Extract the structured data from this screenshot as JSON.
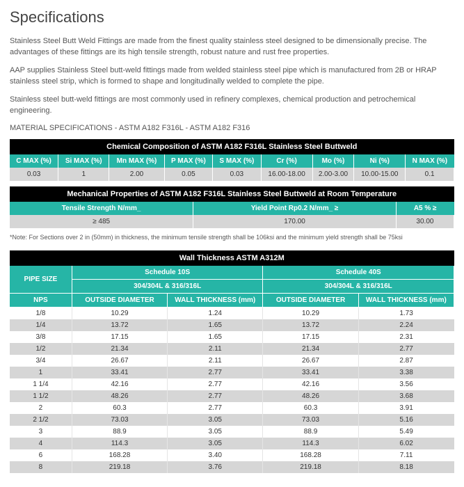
{
  "title": "Specifications",
  "paragraphs": [
    "Stainless Steel Butt Weld Fittings are made from the finest quality stainless steel designed to be dimensionally precise. The advantages of these fittings are its high tensile strength, robust nature and rust free properties.",
    "AAP supplies Stainless Steel butt-weld fittings made from welded stainless steel pipe which is manufactured from 2B or HRAP stainless steel strip, which is formed to shape and longitudinally welded to complete the pipe.",
    "Stainless steel butt-weld fittings are most commonly used in refinery complexes, chemical production and petrochemical engineering."
  ],
  "material_spec_line": "MATERIAL SPECIFICATIONS - ASTM A182 F316L - ASTM A182 F316",
  "chem_table": {
    "title": "Chemical Composition of ASTM A182 F316L Stainless Steel Buttweld",
    "headers": [
      "C MAX (%)",
      "Si MAX (%)",
      "Mn MAX (%)",
      "P MAX (%)",
      "S MAX (%)",
      "Cr (%)",
      "Mo (%)",
      "Ni (%)",
      "N MAX (%)"
    ],
    "values": [
      "0.03",
      "1",
      "2.00",
      "0.05",
      "0.03",
      "16.00-18.00",
      "2.00-3.00",
      "10.00-15.00",
      "0.1"
    ]
  },
  "mech_table": {
    "title": "Mechanical Properties of  ASTM A182 F316L Stainless Steel Buttweld at Room Temperature",
    "headers": [
      "Tensile Strength N/mm_",
      "Yield Point Rp0.2  N/mm_ ≥",
      "A5 % ≥"
    ],
    "values": [
      "≥ 485",
      "170.00",
      "30.00"
    ]
  },
  "note": "*Note: For Sections over 2 in (50mm) in thickness, the minimum tensile strength shall be 106ksi and the minimum yield strength shall be 75ksi",
  "wall_table": {
    "title": "Wall Thickness ASTM A312M",
    "pipe_size_label": "PIPE SIZE",
    "schedule1": "Schedule 10S",
    "schedule2": "Schedule 40S",
    "material_label": "304/304L & 316/316L",
    "nps_label": "NPS",
    "od_label": "OUTSIDE DIAMETER",
    "wt_label_mm": "WALL THICKNESS (mm)",
    "rows": [
      {
        "nps": "1/8",
        "od1": "10.29",
        "wt1": "1.24",
        "od2": "10.29",
        "wt2": "1.73"
      },
      {
        "nps": "1/4",
        "od1": "13.72",
        "wt1": "1.65",
        "od2": "13.72",
        "wt2": "2.24"
      },
      {
        "nps": "3/8",
        "od1": "17.15",
        "wt1": "1.65",
        "od2": "17.15",
        "wt2": "2.31"
      },
      {
        "nps": "1/2",
        "od1": "21.34",
        "wt1": "2.11",
        "od2": "21.34",
        "wt2": "2.77"
      },
      {
        "nps": "3/4",
        "od1": "26.67",
        "wt1": "2.11",
        "od2": "26.67",
        "wt2": "2.87"
      },
      {
        "nps": "1",
        "od1": "33.41",
        "wt1": "2.77",
        "od2": "33.41",
        "wt2": "3.38"
      },
      {
        "nps": "1 1/4",
        "od1": "42.16",
        "wt1": "2.77",
        "od2": "42.16",
        "wt2": "3.56"
      },
      {
        "nps": "1 1/2",
        "od1": "48.26",
        "wt1": "2.77",
        "od2": "48.26",
        "wt2": "3.68"
      },
      {
        "nps": "2",
        "od1": "60.3",
        "wt1": "2.77",
        "od2": "60.3",
        "wt2": "3.91"
      },
      {
        "nps": "2 1/2",
        "od1": "73.03",
        "wt1": "3.05",
        "od2": "73.03",
        "wt2": "5.16"
      },
      {
        "nps": "3",
        "od1": "88.9",
        "wt1": "3.05",
        "od2": "88.9",
        "wt2": "5.49"
      },
      {
        "nps": "4",
        "od1": "114.3",
        "wt1": "3.05",
        "od2": "114.3",
        "wt2": "6.02"
      },
      {
        "nps": "6",
        "od1": "168.28",
        "wt1": "3.40",
        "od2": "168.28",
        "wt2": "7.11"
      },
      {
        "nps": "8",
        "od1": "219.18",
        "wt1": "3.76",
        "od2": "219.18",
        "wt2": "8.18"
      }
    ]
  },
  "colors": {
    "teal": "#26b5a6",
    "black": "#000000",
    "grey_row": "#d6d6d6",
    "white": "#ffffff"
  }
}
